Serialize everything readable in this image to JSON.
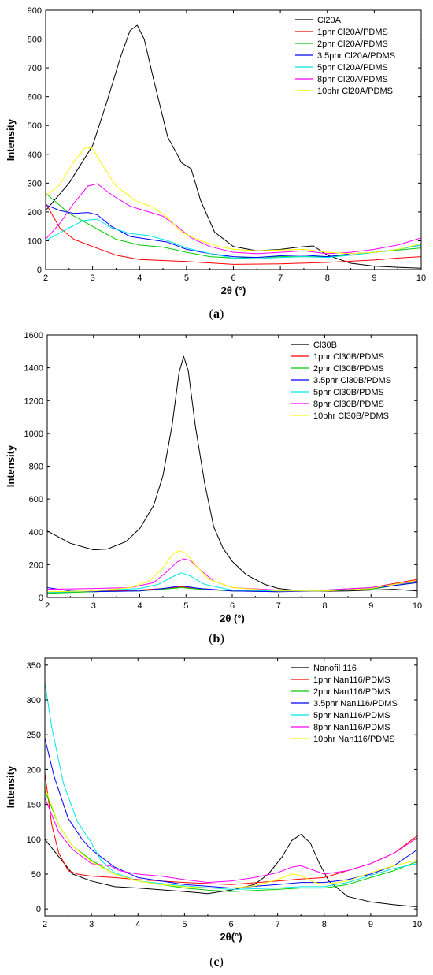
{
  "chart_data": [
    {
      "panel": "a",
      "caption_label": "a",
      "type": "line",
      "xlabel": "2θ (°)",
      "ylabel": "Intensity",
      "xlim": [
        2,
        10
      ],
      "ylim": [
        0,
        900
      ],
      "xticks": [
        2,
        3,
        4,
        5,
        6,
        7,
        8,
        9,
        10
      ],
      "yticks": [
        0,
        100,
        200,
        300,
        400,
        500,
        600,
        700,
        800,
        900
      ],
      "legend_position": "top-right",
      "series": [
        {
          "name": "Cl20A",
          "color": "#000000",
          "x": [
            2,
            2.5,
            3,
            3.3,
            3.6,
            3.8,
            3.95,
            4.1,
            4.3,
            4.6,
            4.9,
            5.1,
            5.3,
            5.6,
            6,
            6.5,
            7,
            7.4,
            7.7,
            8,
            8.5,
            9,
            9.5,
            10
          ],
          "y": [
            205,
            300,
            430,
            580,
            740,
            830,
            848,
            800,
            660,
            460,
            370,
            350,
            240,
            130,
            80,
            65,
            70,
            78,
            82,
            50,
            22,
            12,
            8,
            5
          ]
        },
        {
          "name": "1phr Cl20A/PDMS",
          "color": "#ff0000",
          "x": [
            2,
            2.3,
            2.6,
            3,
            3.5,
            4,
            5,
            6,
            7,
            8,
            9,
            9.5,
            10
          ],
          "y": [
            230,
            145,
            105,
            80,
            50,
            35,
            28,
            18,
            20,
            25,
            33,
            40,
            45
          ]
        },
        {
          "name": "2phr Cl20A/PDMS",
          "color": "#00cc00",
          "x": [
            2,
            2.5,
            3,
            3.5,
            4,
            4.5,
            5,
            5.5,
            6,
            7,
            8,
            8.5,
            9,
            10
          ],
          "y": [
            265,
            195,
            150,
            105,
            85,
            78,
            60,
            45,
            40,
            45,
            45,
            50,
            60,
            75
          ]
        },
        {
          "name": "3.5phr Cl20A/PDMS",
          "color": "#0000ff",
          "x": [
            2,
            2.3,
            2.6,
            2.9,
            3.1,
            3.4,
            3.8,
            4.2,
            4.6,
            5,
            5.5,
            6,
            6.5,
            7,
            7.5,
            8,
            8.5,
            9,
            9.5,
            10
          ],
          "y": [
            225,
            205,
            195,
            198,
            190,
            150,
            115,
            105,
            95,
            70,
            55,
            45,
            42,
            48,
            50,
            45,
            55,
            60,
            70,
            85
          ]
        },
        {
          "name": "5phr Cl20A/PDMS",
          "color": "#00e5e5",
          "x": [
            2,
            2.5,
            2.8,
            3.1,
            3.4,
            3.8,
            4.2,
            4.6,
            5,
            5.5,
            6,
            6.5,
            7,
            7.5,
            8,
            8.5,
            9,
            9.5,
            10
          ],
          "y": [
            100,
            145,
            170,
            175,
            145,
            125,
            118,
            100,
            75,
            55,
            40,
            38,
            42,
            45,
            42,
            50,
            60,
            70,
            85
          ]
        },
        {
          "name": "8phr Cl20A/PDMS",
          "color": "#ff00ff",
          "x": [
            2,
            2.3,
            2.6,
            2.9,
            3.1,
            3.4,
            3.8,
            4.2,
            4.5,
            4.8,
            5.1,
            5.5,
            6,
            6.5,
            7,
            7.5,
            8,
            8.5,
            9,
            9.5,
            10
          ],
          "y": [
            105,
            160,
            230,
            290,
            298,
            260,
            220,
            200,
            185,
            150,
            110,
            80,
            60,
            55,
            60,
            65,
            55,
            60,
            70,
            85,
            110
          ]
        },
        {
          "name": "10phr Cl20A/PDMS",
          "color": "#ffff00",
          "x": [
            2,
            2.3,
            2.6,
            2.85,
            3,
            3.2,
            3.5,
            3.9,
            4.3,
            4.6,
            4.9,
            5.3,
            5.7,
            6,
            6.5,
            7,
            7.5,
            8,
            8.5,
            9,
            9.5,
            10
          ],
          "y": [
            255,
            295,
            375,
            425,
            420,
            365,
            290,
            240,
            215,
            180,
            130,
            100,
            80,
            70,
            65,
            68,
            70,
            60,
            55,
            60,
            70,
            90
          ]
        }
      ]
    },
    {
      "panel": "b",
      "caption_label": "b",
      "type": "line",
      "xlabel": "2θ (°)",
      "ylabel": "Intensity",
      "xlim": [
        2,
        10
      ],
      "ylim": [
        0,
        1600
      ],
      "xticks": [
        2,
        3,
        4,
        5,
        6,
        7,
        8,
        9,
        10
      ],
      "yticks": [
        0,
        200,
        400,
        600,
        800,
        1000,
        1200,
        1400,
        1600
      ],
      "legend_position": "top-right",
      "series": [
        {
          "name": "Cl30B",
          "color": "#000000",
          "x": [
            2,
            2.5,
            3,
            3.3,
            3.7,
            4,
            4.3,
            4.5,
            4.7,
            4.85,
            4.95,
            5.05,
            5.2,
            5.4,
            5.6,
            5.8,
            6,
            6.3,
            6.7,
            7,
            7.5,
            8,
            8.5,
            9,
            9.5,
            10
          ],
          "y": [
            405,
            330,
            290,
            295,
            340,
            420,
            560,
            740,
            1050,
            1370,
            1470,
            1380,
            1050,
            700,
            430,
            300,
            220,
            140,
            80,
            55,
            40,
            38,
            40,
            45,
            50,
            40
          ]
        },
        {
          "name": "1phr Cl30B/PDMS",
          "color": "#ff0000",
          "x": [
            2,
            3,
            4,
            4.5,
            4.9,
            5.3,
            6,
            7,
            8,
            9,
            10
          ],
          "y": [
            30,
            40,
            45,
            55,
            65,
            55,
            40,
            35,
            45,
            60,
            110
          ]
        },
        {
          "name": "2phr Cl30B/PDMS",
          "color": "#00cc00",
          "x": [
            2,
            3,
            4,
            4.5,
            4.9,
            5.3,
            6,
            7,
            8,
            9,
            10
          ],
          "y": [
            25,
            35,
            40,
            50,
            60,
            50,
            40,
            40,
            40,
            50,
            95
          ]
        },
        {
          "name": "3.5phr Cl30B/PDMS",
          "color": "#0000ff",
          "x": [
            2,
            2.5,
            3,
            4,
            4.5,
            4.9,
            5.3,
            6,
            7,
            8,
            9,
            10
          ],
          "y": [
            60,
            40,
            35,
            40,
            55,
            70,
            55,
            40,
            35,
            40,
            55,
            90
          ]
        },
        {
          "name": "5phr Cl30B/PDMS",
          "color": "#00e5e5",
          "x": [
            2,
            3,
            4,
            4.4,
            4.7,
            4.9,
            5.1,
            5.4,
            6,
            7,
            8,
            9,
            10
          ],
          "y": [
            30,
            40,
            55,
            80,
            125,
            150,
            130,
            80,
            45,
            40,
            45,
            60,
            100
          ]
        },
        {
          "name": "8phr Cl30B/PDMS",
          "color": "#ff00ff",
          "x": [
            2,
            3,
            3.8,
            4.3,
            4.6,
            4.8,
            4.95,
            5.1,
            5.3,
            5.6,
            6,
            7,
            8,
            9,
            10
          ],
          "y": [
            50,
            55,
            60,
            90,
            160,
            215,
            235,
            225,
            170,
            100,
            60,
            45,
            45,
            60,
            100
          ]
        },
        {
          "name": "10phr Cl30B/PDMS",
          "color": "#ffff00",
          "x": [
            2,
            3,
            3.8,
            4.2,
            4.5,
            4.7,
            4.85,
            5,
            5.2,
            5.5,
            6,
            7,
            8,
            9,
            10
          ],
          "y": [
            35,
            40,
            60,
            100,
            180,
            260,
            285,
            270,
            200,
            110,
            60,
            40,
            40,
            55,
            105
          ]
        }
      ]
    },
    {
      "panel": "c",
      "caption_label": "c",
      "type": "line",
      "xlabel": "2θ(°)",
      "ylabel": "Intensity",
      "xlim": [
        2,
        10
      ],
      "ylim": [
        -10,
        360
      ],
      "xticks": [
        2,
        3,
        4,
        5,
        6,
        7,
        8,
        9,
        10
      ],
      "yticks": [
        0,
        50,
        100,
        150,
        200,
        250,
        300,
        350
      ],
      "legend_position": "top-right",
      "series": [
        {
          "name": "Nanofil 116",
          "color": "#000000",
          "x": [
            2,
            2.3,
            2.6,
            3,
            3.5,
            4,
            5,
            5.5,
            6,
            6.5,
            6.8,
            7.1,
            7.3,
            7.5,
            7.7,
            7.9,
            8.1,
            8.5,
            9,
            9.5,
            10
          ],
          "y": [
            100,
            75,
            50,
            40,
            32,
            30,
            25,
            22,
            27,
            35,
            50,
            75,
            98,
            107,
            95,
            65,
            40,
            18,
            10,
            6,
            3
          ]
        },
        {
          "name": "1phr Nan116/PDMS",
          "color": "#ff0000",
          "x": [
            2,
            2.15,
            2.3,
            2.5,
            2.7,
            3,
            3.5,
            4,
            5,
            6,
            7,
            7.5,
            8,
            8.5,
            9,
            9.5,
            10
          ],
          "y": [
            195,
            120,
            80,
            55,
            50,
            47,
            45,
            42,
            38,
            35,
            40,
            43,
            45,
            55,
            65,
            80,
            105
          ]
        },
        {
          "name": "2phr Nan116/PDMS",
          "color": "#00cc00",
          "x": [
            2,
            2.3,
            2.6,
            3,
            3.5,
            4,
            4.5,
            5,
            5.5,
            6,
            7,
            7.5,
            8,
            8.5,
            9,
            9.5,
            10
          ],
          "y": [
            170,
            120,
            90,
            70,
            50,
            40,
            35,
            30,
            27,
            25,
            28,
            30,
            30,
            35,
            45,
            55,
            68
          ]
        },
        {
          "name": "3.5phr Nan116/PDMS",
          "color": "#0000ff",
          "x": [
            2,
            2.2,
            2.5,
            2.8,
            3,
            3.5,
            4,
            5,
            6,
            7,
            7.5,
            8,
            8.5,
            9,
            9.5,
            10
          ],
          "y": [
            245,
            190,
            130,
            100,
            85,
            60,
            45,
            35,
            30,
            35,
            38,
            38,
            42,
            50,
            62,
            85
          ]
        },
        {
          "name": "5phr Nan116/PDMS",
          "color": "#00e5e5",
          "x": [
            2,
            2.15,
            2.4,
            2.7,
            3,
            3.2,
            3.5,
            4,
            5,
            6,
            7,
            7.5,
            8,
            8.5,
            9,
            9.5,
            10
          ],
          "y": [
            325,
            260,
            180,
            125,
            95,
            70,
            52,
            40,
            33,
            28,
            30,
            32,
            32,
            38,
            48,
            58,
            65
          ]
        },
        {
          "name": "8phr Nan116/PDMS",
          "color": "#ff00ff",
          "x": [
            2,
            2.3,
            2.6,
            3,
            3.4,
            3.6,
            4,
            4.5,
            5,
            5.5,
            6,
            6.5,
            7,
            7.3,
            7.5,
            7.8,
            8,
            8.5,
            9,
            9.5,
            10
          ],
          "y": [
            160,
            110,
            85,
            65,
            62,
            55,
            50,
            47,
            42,
            38,
            40,
            45,
            52,
            60,
            62,
            55,
            50,
            55,
            65,
            80,
            102
          ]
        },
        {
          "name": "10phr Nan116/PDMS",
          "color": "#ffff00",
          "x": [
            2,
            2.3,
            2.6,
            3,
            3.5,
            4,
            4.5,
            5,
            5.5,
            6,
            6.5,
            7,
            7.3,
            7.5,
            7.8,
            8,
            8.5,
            9,
            9.5,
            10
          ],
          "y": [
            175,
            120,
            90,
            68,
            50,
            40,
            35,
            32,
            30,
            30,
            33,
            42,
            50,
            48,
            38,
            35,
            40,
            52,
            62,
            70
          ]
        }
      ]
    }
  ]
}
